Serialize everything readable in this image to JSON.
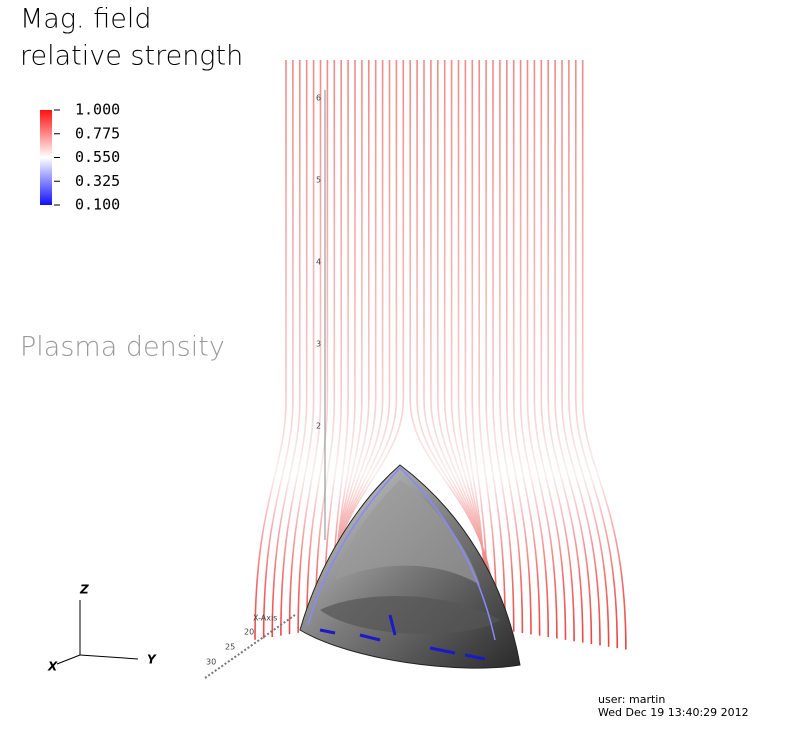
{
  "title": [
    "Mag. field",
    "relative strength"
  ],
  "legend": {
    "ticks": [
      {
        "value": 1,
        "label": "1.000"
      },
      {
        "value": 0.775,
        "label": "0.775"
      },
      {
        "value": 0.55,
        "label": "0.550"
      },
      {
        "value": 0.325,
        "label": "0.325"
      },
      {
        "value": 0.1,
        "label": "0.100"
      }
    ],
    "range": [
      0.1,
      1
    ],
    "colors": [
      "#1010ff",
      "#ffffff",
      "#ff1010"
    ]
  },
  "subtitle": "Plasma density",
  "scene": {
    "z_ticks": [
      "6",
      "5",
      "4",
      "3",
      "2"
    ],
    "x_axis_label": "X-Axis",
    "x_ticks": [
      "20",
      "25",
      "30"
    ]
  },
  "triad": {
    "z": "Z",
    "y": "Y",
    "x": "X"
  },
  "footer": {
    "user": "user: martin",
    "date": "Wed Dec 19 13:40:29 2012"
  }
}
